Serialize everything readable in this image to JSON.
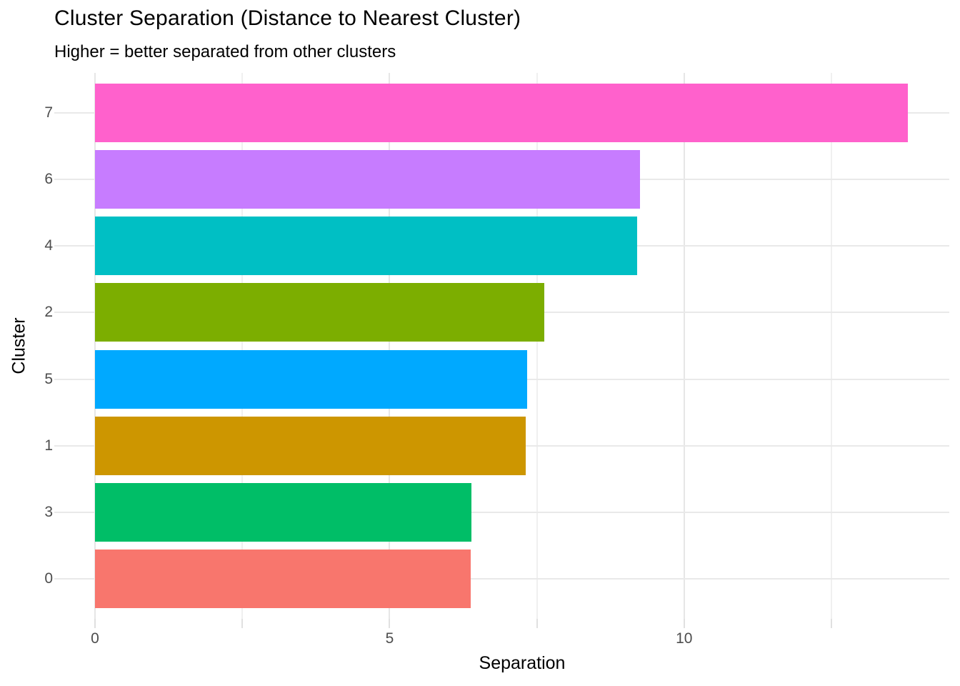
{
  "chart_data": {
    "type": "bar",
    "orientation": "horizontal",
    "title": "Cluster Separation (Distance to Nearest Cluster)",
    "subtitle": "Higher = better separated from other clusters",
    "xlabel": "Separation",
    "ylabel": "Cluster",
    "categories": [
      "7",
      "6",
      "4",
      "2",
      "5",
      "1",
      "3",
      "0"
    ],
    "series": [
      {
        "name": "Separation",
        "values": [
          13.8,
          9.25,
          9.2,
          7.63,
          7.33,
          7.31,
          6.39,
          6.38
        ]
      }
    ],
    "bar_colors": [
      "#FF61CC",
      "#C77CFF",
      "#00BFC4",
      "#7CAE00",
      "#00A9FF",
      "#CD9600",
      "#00BE67",
      "#F8766D"
    ],
    "xlim": [
      0,
      14.5
    ],
    "x_major_ticks": [
      0,
      5,
      10
    ],
    "x_tick_labels": [
      "0",
      "5",
      "10"
    ],
    "x_minor_ticks": [
      2.5,
      7.5,
      12.5
    ],
    "grid": "on",
    "legend": "none"
  },
  "style_colors": {
    "background": "#FFFFFF",
    "grid_major": "#E6E6E6",
    "grid_minor": "#F0F0F0",
    "axis_tick": "#E0E0E0",
    "tick_label": "#4D4D4D",
    "text": "#000000"
  }
}
